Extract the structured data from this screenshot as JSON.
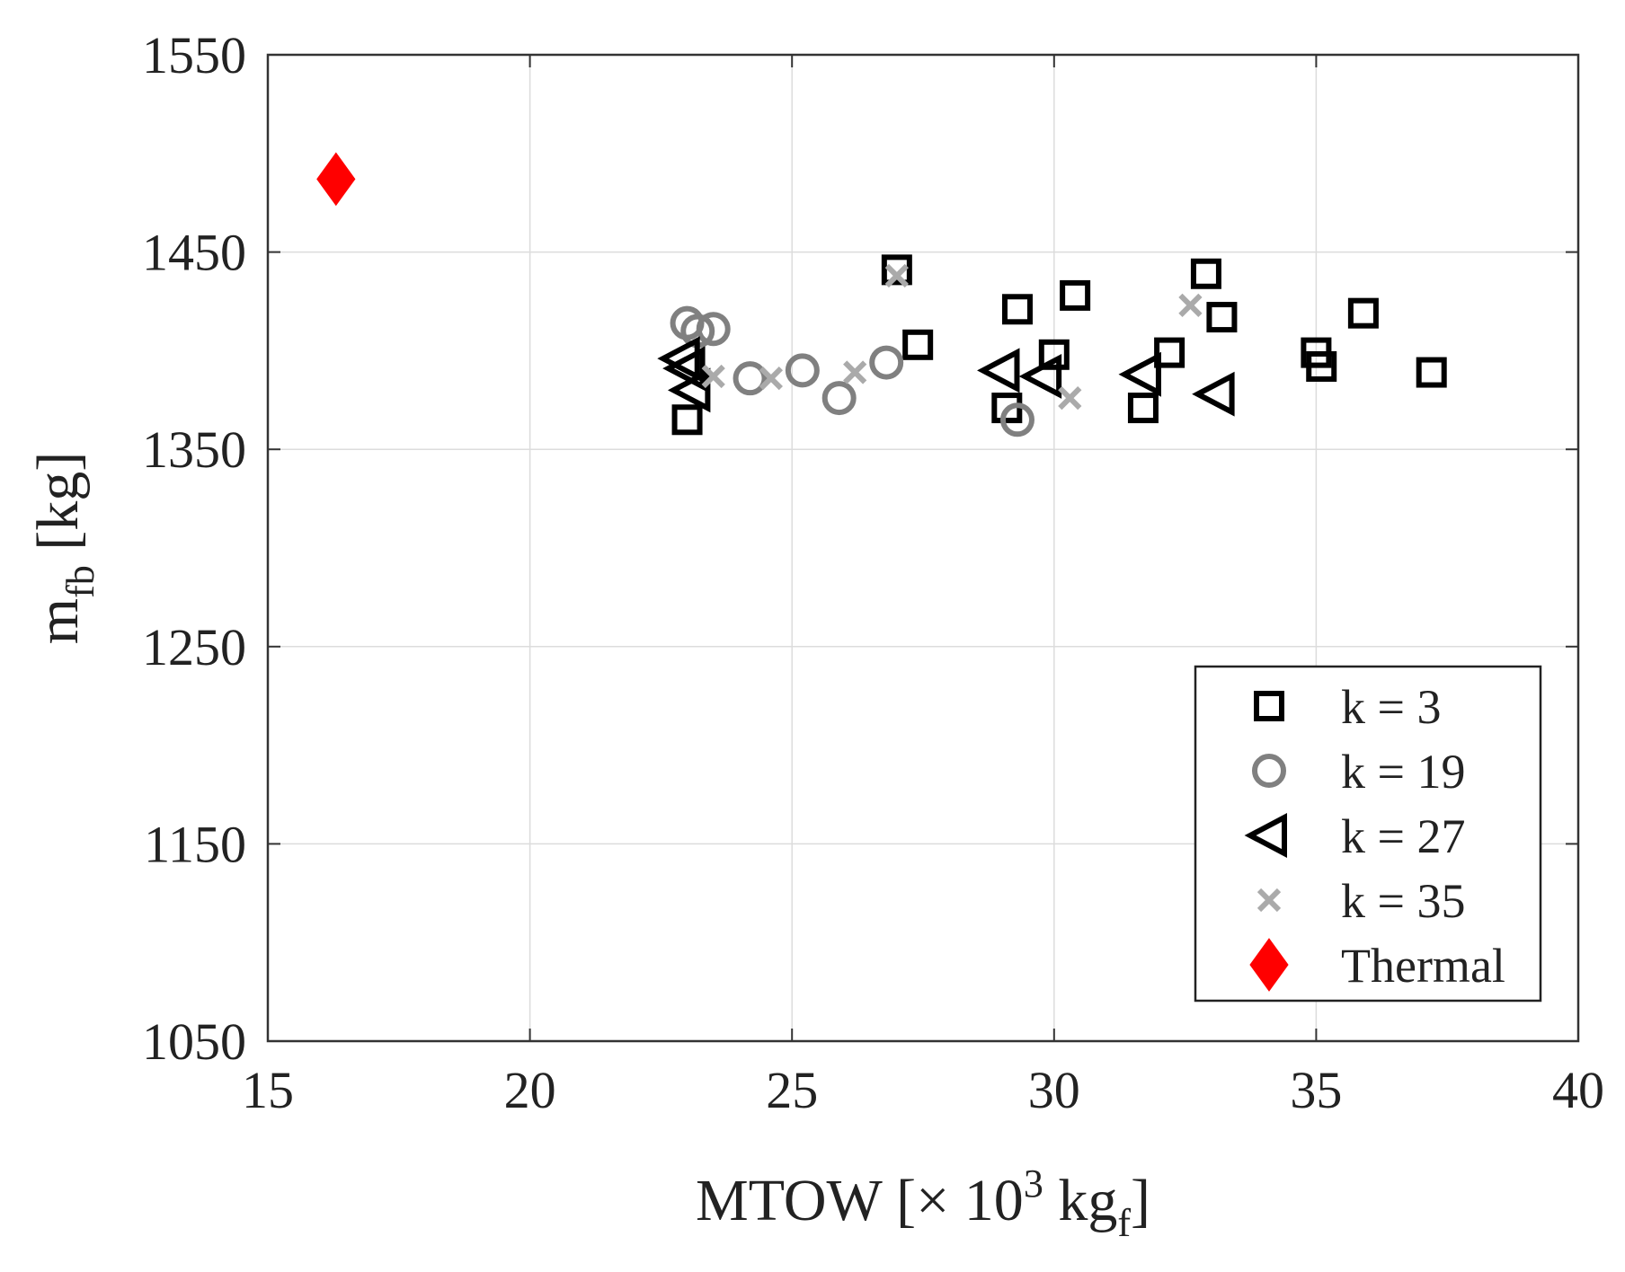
{
  "chart_data": {
    "type": "scatter",
    "title": "",
    "xlabel": {
      "main": "MTOW [× 10",
      "sup": "3",
      "mid": " kg",
      "sub": "f",
      "end": "]"
    },
    "ylabel": {
      "main": "m",
      "sub": "fb",
      "end": " [kg]"
    },
    "xlim": [
      15,
      40
    ],
    "ylim": [
      1050,
      1550
    ],
    "xticks": [
      15,
      20,
      25,
      30,
      35,
      40
    ],
    "yticks": [
      1050,
      1150,
      1250,
      1350,
      1450,
      1550
    ],
    "grid": true,
    "legend_position": "bottom-right",
    "series": [
      {
        "name": "k = 3",
        "marker": "square",
        "color": "#000000",
        "x": [
          23.0,
          27.0,
          27.4,
          29.1,
          29.3,
          30.0,
          30.4,
          31.7,
          32.2,
          32.9,
          33.2,
          35.0,
          35.1,
          35.9,
          37.2
        ],
        "y": [
          1365,
          1441,
          1403,
          1371,
          1421,
          1398,
          1428,
          1371,
          1399,
          1439,
          1417,
          1399,
          1392,
          1419,
          1389
        ]
      },
      {
        "name": "k = 19",
        "marker": "circle",
        "color": "#808080",
        "x": [
          23.0,
          23.2,
          23.5,
          24.2,
          25.2,
          25.9,
          26.8,
          29.3
        ],
        "y": [
          1414,
          1410,
          1411,
          1386,
          1390,
          1376,
          1394,
          1365
        ]
      },
      {
        "name": "k = 27",
        "marker": "triangle-left",
        "color": "#000000",
        "x": [
          22.9,
          23.0,
          23.1,
          29.0,
          29.8,
          31.7,
          33.1
        ],
        "y": [
          1396,
          1391,
          1380,
          1390,
          1387,
          1388,
          1378
        ]
      },
      {
        "name": "k = 35",
        "marker": "x",
        "color": "#aaaaaa",
        "x": [
          23.5,
          24.6,
          26.2,
          27.0,
          30.3,
          32.6
        ],
        "y": [
          1387,
          1386,
          1389,
          1438,
          1376,
          1423
        ]
      },
      {
        "name": "Thermal",
        "marker": "diamond",
        "color": "#ff0000",
        "x": [
          16.3
        ],
        "y": [
          1487
        ]
      }
    ]
  }
}
